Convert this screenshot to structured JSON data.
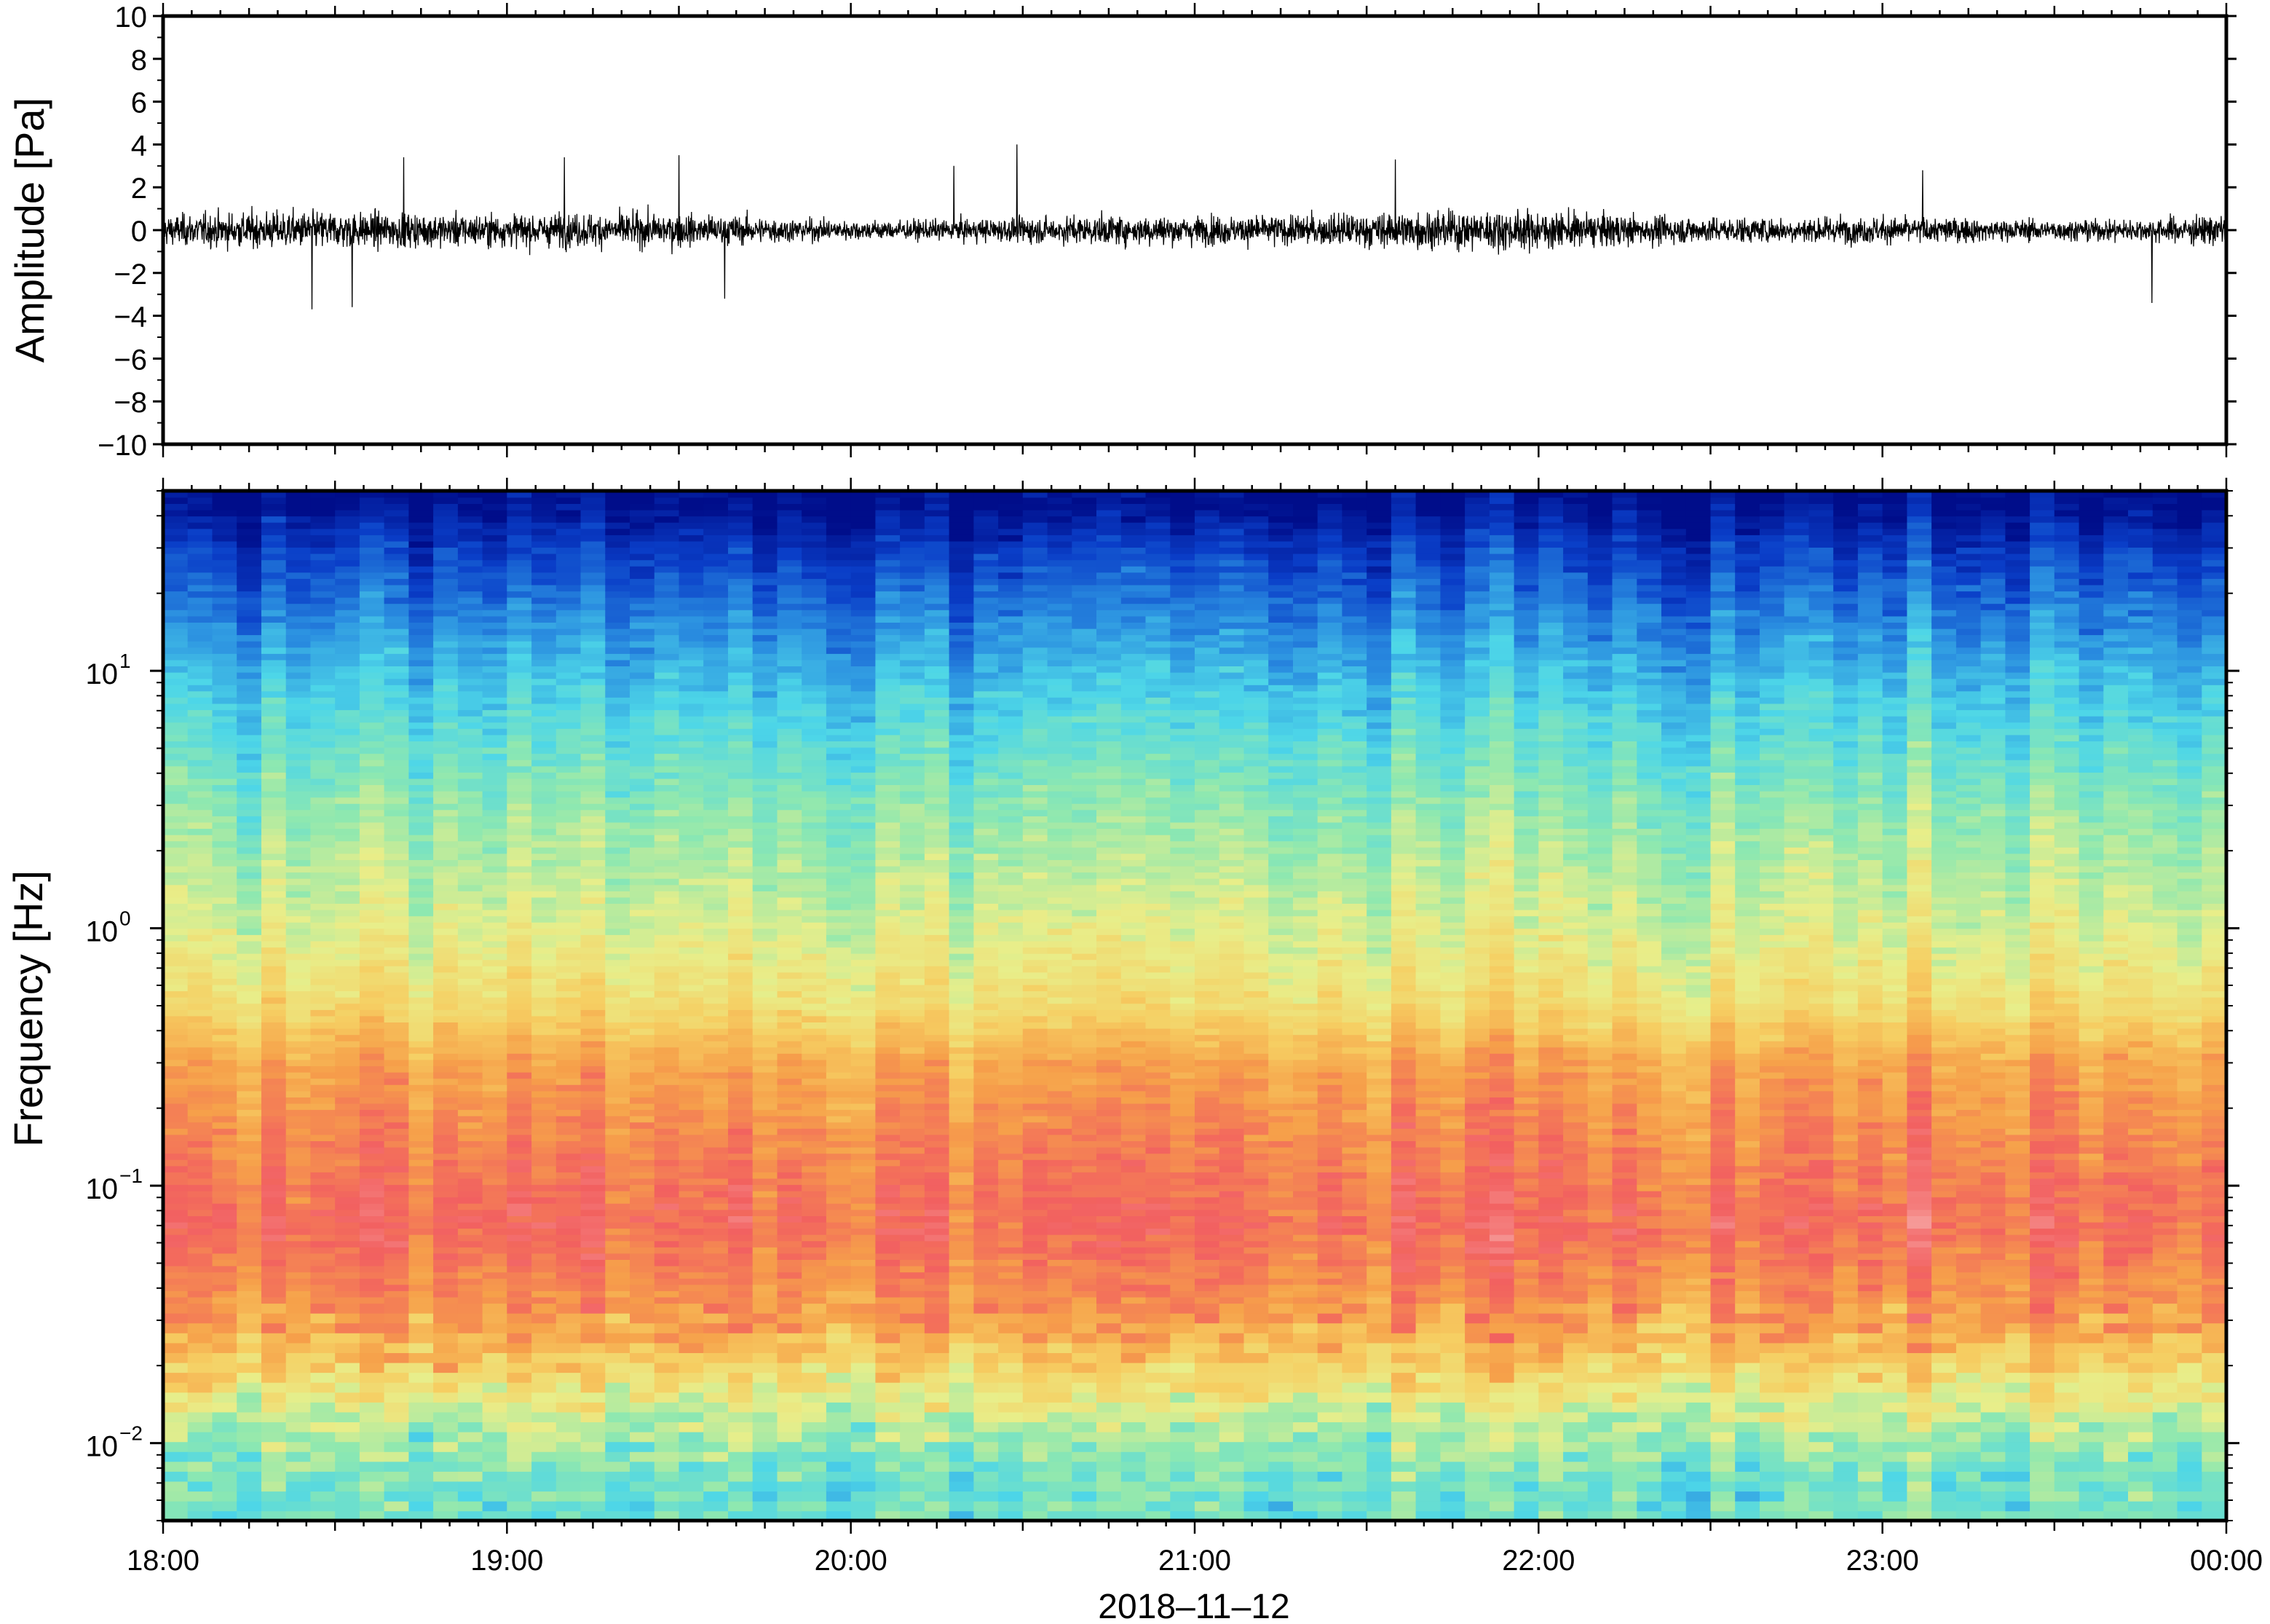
{
  "figure": {
    "date_label": "2018–11–12"
  },
  "chart_data": [
    {
      "type": "line",
      "panel": "waveform",
      "ylabel": "Amplitude [Pa]",
      "ylim": [
        -10,
        10
      ],
      "y_ticks": [
        "10",
        "8",
        "6",
        "4",
        "2",
        "0",
        "−2",
        "−4",
        "−6",
        "−8",
        "−10"
      ],
      "y_tick_values": [
        10,
        8,
        6,
        4,
        2,
        0,
        -2,
        -4,
        -6,
        -8,
        -10
      ],
      "x_range_hours": [
        18,
        24
      ],
      "series": [
        {
          "color": "#000000",
          "typical_envelope_pa": 1.2,
          "peak_events": [
            {
              "time": "18:26",
              "y": -3.7
            },
            {
              "time": "18:33",
              "y": -3.6
            },
            {
              "time": "18:42",
              "y": 3.4
            },
            {
              "time": "19:10",
              "y": 3.4
            },
            {
              "time": "19:30",
              "y": 3.5
            },
            {
              "time": "19:38",
              "y": -3.2
            },
            {
              "time": "20:18",
              "y": 3.0
            },
            {
              "time": "20:29",
              "y": 4.0
            },
            {
              "time": "21:35",
              "y": 3.3
            },
            {
              "time": "23:07",
              "y": 2.8
            },
            {
              "time": "23:47",
              "y": -3.4
            }
          ]
        }
      ]
    },
    {
      "type": "heatmap",
      "panel": "spectrogram",
      "ylabel": "Frequency [Hz]",
      "y_scale": "log",
      "ylim": [
        0.005,
        50
      ],
      "y_ticks": [
        {
          "base": "10",
          "exp": "1",
          "value": 10
        },
        {
          "base": "10",
          "exp": "0",
          "value": 1
        },
        {
          "base": "10",
          "exp": "−1",
          "value": 0.1
        },
        {
          "base": "10",
          "exp": "−2",
          "value": 0.01
        }
      ],
      "x_ticks": [
        "18:00",
        "19:00",
        "20:00",
        "21:00",
        "22:00",
        "23:00",
        "00:00"
      ],
      "x_range_hours": [
        18,
        24
      ],
      "colormap": [
        "#000d8a",
        "#0a3ec8",
        "#2a8ee0",
        "#4dd6e8",
        "#8ee8b0",
        "#e8ee8a",
        "#f6ce62",
        "#f6a04a",
        "#f26060",
        "#f69c9a"
      ],
      "power_profile": [
        {
          "freq_hz": 45,
          "level": 0.0
        },
        {
          "freq_hz": 30,
          "level": 0.1
        },
        {
          "freq_hz": 15,
          "level": 0.22
        },
        {
          "freq_hz": 8,
          "level": 0.32
        },
        {
          "freq_hz": 3,
          "level": 0.44
        },
        {
          "freq_hz": 1,
          "level": 0.54
        },
        {
          "freq_hz": 0.5,
          "level": 0.62
        },
        {
          "freq_hz": 0.3,
          "level": 0.76
        },
        {
          "freq_hz": 0.15,
          "level": 0.82
        },
        {
          "freq_hz": 0.07,
          "level": 0.87
        },
        {
          "freq_hz": 0.03,
          "level": 0.78
        },
        {
          "freq_hz": 0.02,
          "level": 0.66
        },
        {
          "freq_hz": 0.012,
          "level": 0.5
        },
        {
          "freq_hz": 0.007,
          "level": 0.4
        }
      ]
    }
  ]
}
